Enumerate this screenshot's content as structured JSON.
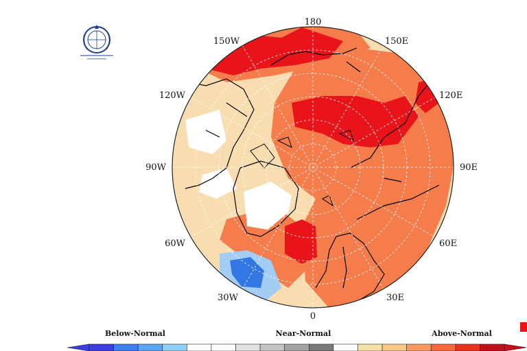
{
  "logo": {
    "name": "wmo-logo-icon"
  },
  "longitude_labels": [
    {
      "key": "180",
      "text": "180"
    },
    {
      "key": "150e",
      "text": "150E"
    },
    {
      "key": "120e",
      "text": "120E"
    },
    {
      "key": "90e",
      "text": "90E"
    },
    {
      "key": "60e",
      "text": "60E"
    },
    {
      "key": "30e",
      "text": "30E"
    },
    {
      "key": "0",
      "text": "0"
    },
    {
      "key": "30w",
      "text": "30W"
    },
    {
      "key": "60w",
      "text": "60W"
    },
    {
      "key": "90w",
      "text": "90W"
    },
    {
      "key": "120w",
      "text": "120W"
    },
    {
      "key": "150w",
      "text": "150W"
    }
  ],
  "legend": {
    "categories": [
      "Below-Normal",
      "Near-Normal",
      "Above-Normal"
    ],
    "colors": [
      "#3a3ee0",
      "#3c7ff0",
      "#5aa6f5",
      "#8fd0f8",
      "#ffffff",
      "#ffffff",
      "#e2e2e2",
      "#c4c4c4",
      "#a4a4a4",
      "#7a7a7a",
      "#ffffff",
      "#f6e2a6",
      "#fbc886",
      "#f99a5e",
      "#f66a3a",
      "#e8341f",
      "#c0101a"
    ]
  },
  "palette": {
    "above_strong": "#e8141a",
    "above_mid": "#f57d4c",
    "above_light": "#f8ddb0",
    "below_light": "#a3cdf4",
    "below_mid": "#5a9ded",
    "below_strong": "#3277e3",
    "near_normal": "#ffffff"
  }
}
